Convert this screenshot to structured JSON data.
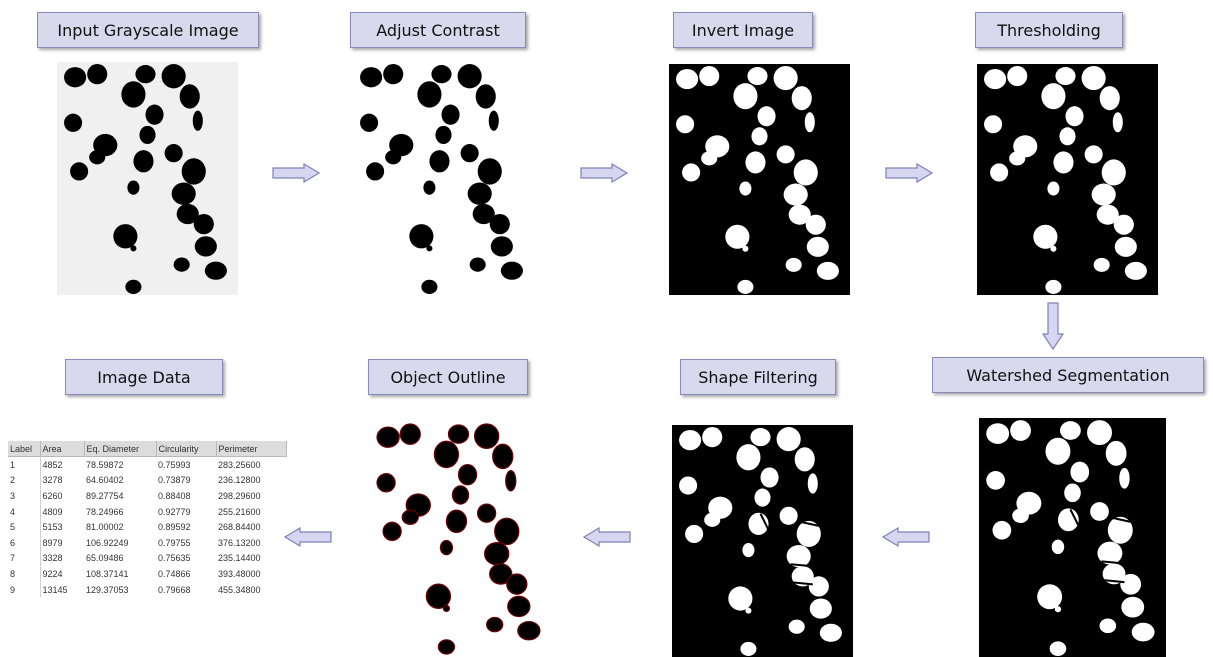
{
  "steps": {
    "input": "Input Grayscale Image",
    "contrast": "Adjust Contrast",
    "invert": "Invert Image",
    "threshold": "Thresholding",
    "watershed": "Watershed Segmentation",
    "shape": "Shape Filtering",
    "outline": "Object Outline",
    "data": "Image Data"
  },
  "table": {
    "headers": [
      "Label",
      "Area",
      "Eq. Diameter",
      "Circularity",
      "Perimeter"
    ],
    "rows": [
      [
        "1",
        "4852",
        "78.59872",
        "0.75993",
        "283.25600"
      ],
      [
        "2",
        "3278",
        "64.60402",
        "0.73879",
        "236.12800"
      ],
      [
        "3",
        "6260",
        "89.27754",
        "0.88408",
        "298.29600"
      ],
      [
        "4",
        "4809",
        "78.24966",
        "0.92779",
        "255.21600"
      ],
      [
        "5",
        "5153",
        "81.00002",
        "0.89592",
        "268.84400"
      ],
      [
        "6",
        "8979",
        "106.92249",
        "0.79755",
        "376.13200"
      ],
      [
        "7",
        "3328",
        "65.09486",
        "0.75635",
        "235.14400"
      ],
      [
        "8",
        "9224",
        "108.37141",
        "0.74866",
        "393.48000"
      ],
      [
        "9",
        "13145",
        "129.37053",
        "0.79668",
        "455.34800"
      ]
    ]
  },
  "colors": {
    "label_fill": "#d9d9ee",
    "arrow_fill": "#d6d6f0",
    "arrow_stroke": "#8080b8",
    "outline_red": "#6a0000"
  }
}
